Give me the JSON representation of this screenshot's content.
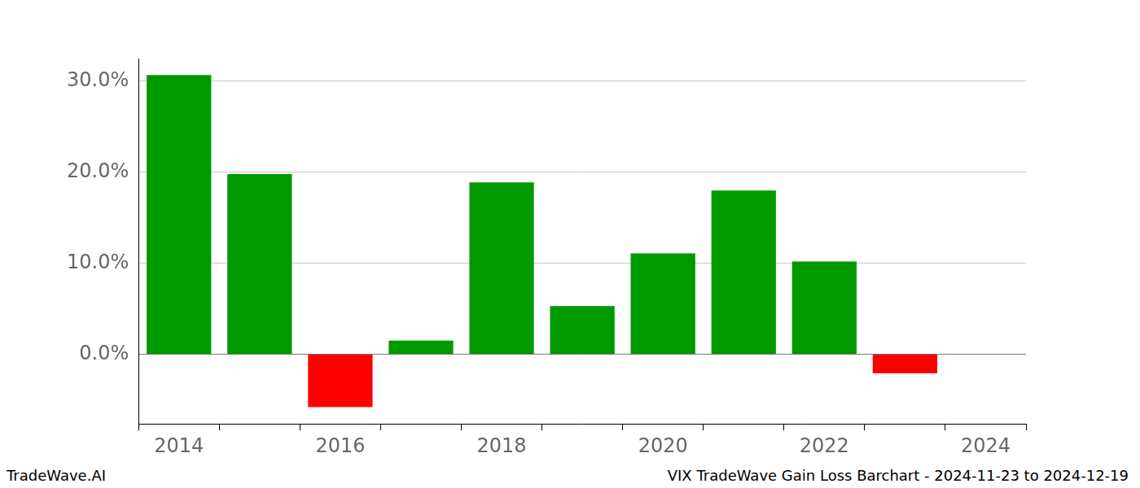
{
  "chart_data": {
    "type": "bar",
    "categories": [
      "2014",
      null,
      "2016",
      null,
      "2018",
      null,
      "2020",
      null,
      "2022",
      null,
      "2024"
    ],
    "values": [
      30.7,
      19.8,
      -5.8,
      1.5,
      18.9,
      5.3,
      11.1,
      18.0,
      10.2,
      -2.1,
      null
    ],
    "colors": [
      "#009900",
      "#009900",
      "#ff0000",
      "#009900",
      "#009900",
      "#009900",
      "#009900",
      "#009900",
      "#009900",
      "#ff0000",
      "#009900"
    ],
    "ylim": [
      -7.65,
      32.5
    ],
    "yticks": [
      {
        "value": 0,
        "label": "0.0%"
      },
      {
        "value": 10,
        "label": "10.0%"
      },
      {
        "value": 20,
        "label": "20.0%"
      },
      {
        "value": 30,
        "label": "30.0%"
      }
    ],
    "grid": "y",
    "annotations": [
      "TradeWave.AI",
      "VIX TradeWave Gain Loss Barchart - 2024-11-23 to 2024-12-19"
    ]
  }
}
